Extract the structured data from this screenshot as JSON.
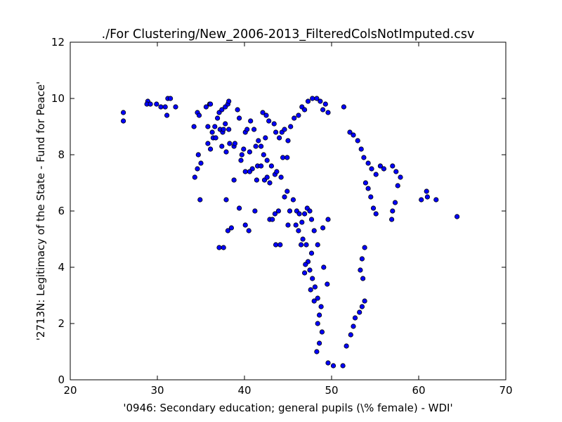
{
  "chart_data": {
    "type": "scatter",
    "title": "./For Clustering/New_2006-2013_FilteredColsNotImputed.csv",
    "xlabel": "'0946: Secondary education; general pupils  (\\% female) - WDI'",
    "ylabel": "'2713N: Legitimacy of the State - Fund for Peace'",
    "xlim": [
      20,
      70
    ],
    "ylim": [
      0,
      12
    ],
    "xticks": [
      20,
      30,
      40,
      50,
      60,
      70
    ],
    "yticks": [
      0,
      2,
      4,
      6,
      8,
      10,
      12
    ],
    "xtick_labels": [
      "20",
      "30",
      "40",
      "50",
      "60",
      "70"
    ],
    "ytick_labels": [
      "0",
      "2",
      "4",
      "6",
      "8",
      "10",
      "12"
    ],
    "grid": false,
    "marker_color": "#0000ff",
    "marker_edge": "#000000",
    "series": [
      {
        "points": [
          [
            26.1,
            9.5
          ],
          [
            26.1,
            9.2
          ],
          [
            28.9,
            9.9
          ],
          [
            28.8,
            9.8
          ],
          [
            29.2,
            9.8
          ],
          [
            29.9,
            9.8
          ],
          [
            30.4,
            9.7
          ],
          [
            30.9,
            9.7
          ],
          [
            31.2,
            10.0
          ],
          [
            31.5,
            10.0
          ],
          [
            31.1,
            9.4
          ],
          [
            32.1,
            9.7
          ],
          [
            34.2,
            9.0
          ],
          [
            34.6,
            9.5
          ],
          [
            34.8,
            9.4
          ],
          [
            35.6,
            9.7
          ],
          [
            36.0,
            9.8
          ],
          [
            36.1,
            9.8
          ],
          [
            36.9,
            9.3
          ],
          [
            37.1,
            9.5
          ],
          [
            37.4,
            9.6
          ],
          [
            37.8,
            9.7
          ],
          [
            38.1,
            9.8
          ],
          [
            38.2,
            9.9
          ],
          [
            39.2,
            9.6
          ],
          [
            39.4,
            9.3
          ],
          [
            35.8,
            9.0
          ],
          [
            36.3,
            8.8
          ],
          [
            36.4,
            8.6
          ],
          [
            37.2,
            8.9
          ],
          [
            37.8,
            9.1
          ],
          [
            38.2,
            8.9
          ],
          [
            36.6,
            9.0
          ],
          [
            37.4,
            8.3
          ],
          [
            37.9,
            8.1
          ],
          [
            38.3,
            8.4
          ],
          [
            38.8,
            8.3
          ],
          [
            38.9,
            8.4
          ],
          [
            39.6,
            7.8
          ],
          [
            39.7,
            8.0
          ],
          [
            40.1,
            8.8
          ],
          [
            40.3,
            8.9
          ],
          [
            40.7,
            9.2
          ],
          [
            41.1,
            8.9
          ],
          [
            41.6,
            8.5
          ],
          [
            41.9,
            8.3
          ],
          [
            42.4,
            8.6
          ],
          [
            42.1,
            9.5
          ],
          [
            42.5,
            9.4
          ],
          [
            42.8,
            9.2
          ],
          [
            43.4,
            9.1
          ],
          [
            43.6,
            8.8
          ],
          [
            44.0,
            8.6
          ],
          [
            44.3,
            8.8
          ],
          [
            44.6,
            8.9
          ],
          [
            42.2,
            8.0
          ],
          [
            42.6,
            7.8
          ],
          [
            43.1,
            7.6
          ],
          [
            43.5,
            7.3
          ],
          [
            43.7,
            7.4
          ],
          [
            44.2,
            7.2
          ],
          [
            44.4,
            7.9
          ],
          [
            44.9,
            7.9
          ],
          [
            45.0,
            8.5
          ],
          [
            41.5,
            7.6
          ],
          [
            41.9,
            7.6
          ],
          [
            42.3,
            7.1
          ],
          [
            42.6,
            7.2
          ],
          [
            42.9,
            7.0
          ],
          [
            41.4,
            7.1
          ],
          [
            40.9,
            7.5
          ],
          [
            40.6,
            7.4
          ],
          [
            40.1,
            7.4
          ],
          [
            39.9,
            8.2
          ],
          [
            40.6,
            8.1
          ],
          [
            41.3,
            8.3
          ],
          [
            34.7,
            8.0
          ],
          [
            34.6,
            7.5
          ],
          [
            35.0,
            7.7
          ],
          [
            34.3,
            7.2
          ],
          [
            35.8,
            8.4
          ],
          [
            36.7,
            8.6
          ],
          [
            37.5,
            8.8
          ],
          [
            36.1,
            8.2
          ],
          [
            38.8,
            7.1
          ],
          [
            37.6,
            8.9
          ],
          [
            34.9,
            6.4
          ],
          [
            37.9,
            6.4
          ],
          [
            38.1,
            5.3
          ],
          [
            38.5,
            5.4
          ],
          [
            37.1,
            4.7
          ],
          [
            37.6,
            4.7
          ],
          [
            39.4,
            6.1
          ],
          [
            40.1,
            5.5
          ],
          [
            40.5,
            5.3
          ],
          [
            41.2,
            6.0
          ],
          [
            42.9,
            5.7
          ],
          [
            43.2,
            5.7
          ],
          [
            43.5,
            5.9
          ],
          [
            43.9,
            6.0
          ],
          [
            43.6,
            4.8
          ],
          [
            44.1,
            4.8
          ],
          [
            44.6,
            6.5
          ],
          [
            44.9,
            6.7
          ],
          [
            45.2,
            6.0
          ],
          [
            45.6,
            6.4
          ],
          [
            46.0,
            6.0
          ],
          [
            46.3,
            5.9
          ],
          [
            46.6,
            5.6
          ],
          [
            46.9,
            5.9
          ],
          [
            47.2,
            6.1
          ],
          [
            47.5,
            6.0
          ],
          [
            45.0,
            5.5
          ],
          [
            45.9,
            5.5
          ],
          [
            46.2,
            5.3
          ],
          [
            46.7,
            5.0
          ],
          [
            46.5,
            4.8
          ],
          [
            47.1,
            4.8
          ],
          [
            47.7,
            5.7
          ],
          [
            48.0,
            5.3
          ],
          [
            49.0,
            5.4
          ],
          [
            49.6,
            5.7
          ],
          [
            45.3,
            9.0
          ],
          [
            45.7,
            9.3
          ],
          [
            46.2,
            9.4
          ],
          [
            46.6,
            9.7
          ],
          [
            46.9,
            9.6
          ],
          [
            47.3,
            9.9
          ],
          [
            47.8,
            10.0
          ],
          [
            48.3,
            10.0
          ],
          [
            48.7,
            9.9
          ],
          [
            49.0,
            9.6
          ],
          [
            49.3,
            9.8
          ],
          [
            49.6,
            9.5
          ],
          [
            51.4,
            9.7
          ],
          [
            52.1,
            8.8
          ],
          [
            52.5,
            8.7
          ],
          [
            53.0,
            8.5
          ],
          [
            53.4,
            8.2
          ],
          [
            53.7,
            7.9
          ],
          [
            54.2,
            7.7
          ],
          [
            54.6,
            7.5
          ],
          [
            55.1,
            7.3
          ],
          [
            55.6,
            7.6
          ],
          [
            56.0,
            7.5
          ],
          [
            57.0,
            7.6
          ],
          [
            57.4,
            7.4
          ],
          [
            57.9,
            7.2
          ],
          [
            57.6,
            6.9
          ],
          [
            57.3,
            6.3
          ],
          [
            57.0,
            6.0
          ],
          [
            56.9,
            5.7
          ],
          [
            55.1,
            5.9
          ],
          [
            54.8,
            6.1
          ],
          [
            54.5,
            6.5
          ],
          [
            54.2,
            6.8
          ],
          [
            53.9,
            7.0
          ],
          [
            60.3,
            6.4
          ],
          [
            60.9,
            6.7
          ],
          [
            61.0,
            6.5
          ],
          [
            62.0,
            6.4
          ],
          [
            64.4,
            5.8
          ],
          [
            53.8,
            4.7
          ],
          [
            53.5,
            4.3
          ],
          [
            53.3,
            3.9
          ],
          [
            53.6,
            3.6
          ],
          [
            53.8,
            2.8
          ],
          [
            53.5,
            2.6
          ],
          [
            53.2,
            2.4
          ],
          [
            52.7,
            2.2
          ],
          [
            52.5,
            1.9
          ],
          [
            52.2,
            1.6
          ],
          [
            51.7,
            1.2
          ],
          [
            51.3,
            0.5
          ],
          [
            50.2,
            0.5
          ],
          [
            49.6,
            0.6
          ],
          [
            48.3,
            1.0
          ],
          [
            48.6,
            1.3
          ],
          [
            48.9,
            1.7
          ],
          [
            48.4,
            2.0
          ],
          [
            48.6,
            2.3
          ],
          [
            48.8,
            2.6
          ],
          [
            48.4,
            2.9
          ],
          [
            48.1,
            3.3
          ],
          [
            47.8,
            3.6
          ],
          [
            47.5,
            3.9
          ],
          [
            47.3,
            4.2
          ],
          [
            47.7,
            4.5
          ],
          [
            47.0,
            4.1
          ],
          [
            46.9,
            3.8
          ],
          [
            47.6,
            3.2
          ],
          [
            48.0,
            2.8
          ],
          [
            48.4,
            4.8
          ],
          [
            49.1,
            4.0
          ],
          [
            49.5,
            3.4
          ]
        ]
      }
    ]
  }
}
